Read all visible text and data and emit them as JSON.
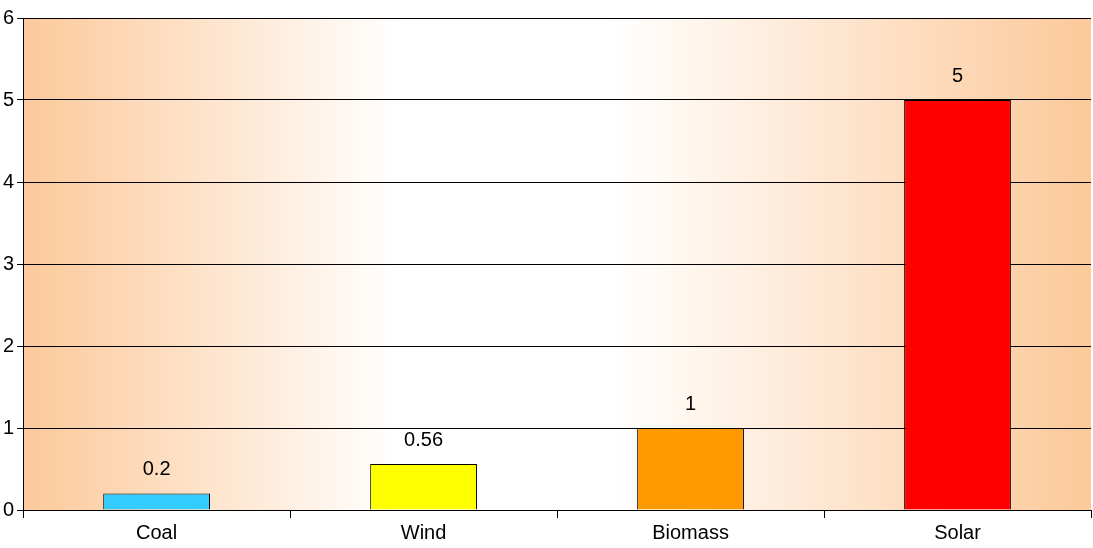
{
  "chart_data": {
    "type": "bar",
    "categories": [
      "Coal",
      "Wind",
      "Biomass",
      "Solar"
    ],
    "values": [
      0.2,
      0.56,
      1,
      5
    ],
    "colors": [
      "#33ccff",
      "#ffff00",
      "#ff9900",
      "#ff0000"
    ],
    "ylim": [
      0,
      6
    ],
    "yticks": [
      0,
      1,
      2,
      3,
      4,
      5,
      6
    ],
    "grid": "y",
    "data_labels": true,
    "legend": false
  }
}
